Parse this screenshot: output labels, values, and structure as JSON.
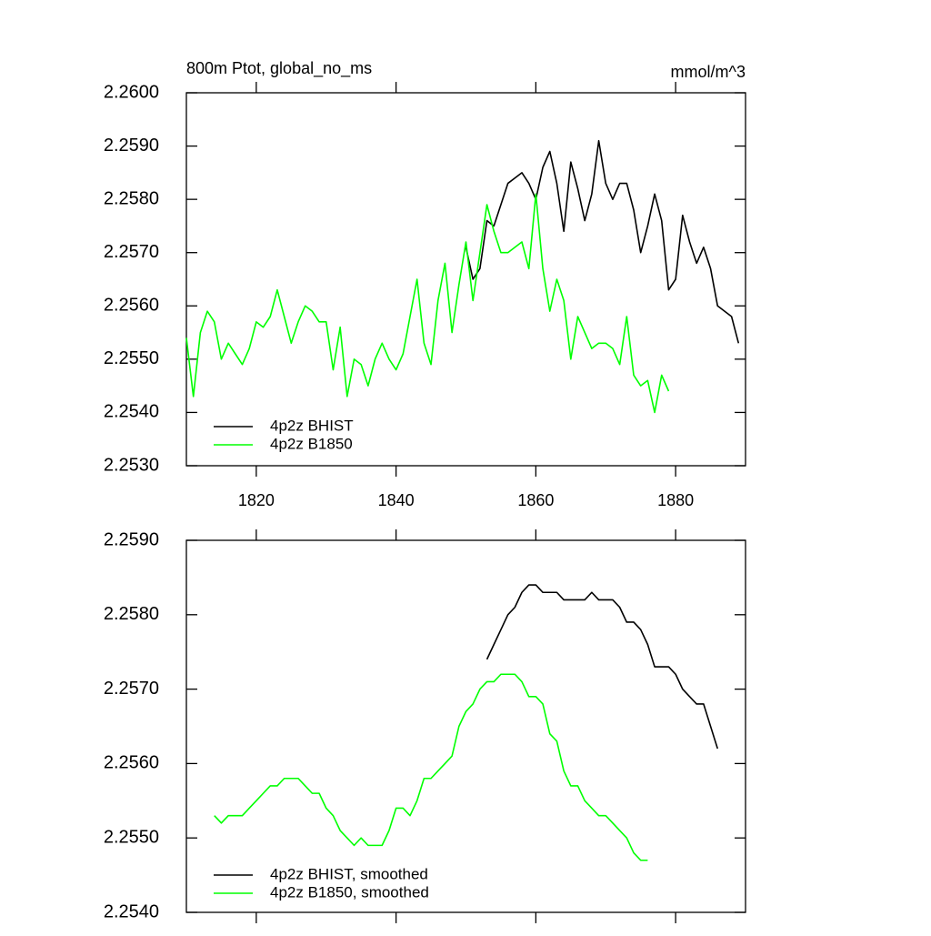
{
  "chart_data": [
    {
      "type": "line",
      "title": "800m Ptot, global_no_ms",
      "units": "mmol/m^3",
      "x": [
        1810,
        1811,
        1812,
        1813,
        1814,
        1815,
        1816,
        1817,
        1818,
        1819,
        1820,
        1821,
        1822,
        1823,
        1824,
        1825,
        1826,
        1827,
        1828,
        1829,
        1830,
        1831,
        1832,
        1833,
        1834,
        1835,
        1836,
        1837,
        1838,
        1839,
        1840,
        1841,
        1842,
        1843,
        1844,
        1845,
        1846,
        1847,
        1848,
        1849,
        1850,
        1851,
        1852,
        1853,
        1854,
        1855,
        1856,
        1857,
        1858,
        1859,
        1860,
        1861,
        1862,
        1863,
        1864,
        1865,
        1866,
        1867,
        1868,
        1869,
        1870,
        1871,
        1872,
        1873,
        1874,
        1875,
        1876,
        1877,
        1878,
        1879,
        1880,
        1881,
        1882,
        1883,
        1884,
        1885,
        1886,
        1887,
        1888,
        1889
      ],
      "series": [
        {
          "name": "4p2z BHIST",
          "color": "#000000",
          "values": [
            null,
            null,
            null,
            null,
            null,
            null,
            null,
            null,
            null,
            null,
            null,
            null,
            null,
            null,
            null,
            null,
            null,
            null,
            null,
            null,
            null,
            null,
            null,
            null,
            null,
            null,
            null,
            null,
            null,
            null,
            null,
            null,
            null,
            null,
            null,
            null,
            null,
            null,
            null,
            null,
            2.2571,
            2.2565,
            2.2567,
            2.2576,
            2.2575,
            2.2579,
            2.2583,
            2.2584,
            2.2585,
            2.2583,
            2.258,
            2.2586,
            2.2589,
            2.2583,
            2.2574,
            2.2587,
            2.2582,
            2.2576,
            2.2581,
            2.2591,
            2.2583,
            2.258,
            2.2583,
            2.2583,
            2.2578,
            2.257,
            2.2575,
            2.2581,
            2.2576,
            2.2563,
            2.2565,
            2.2577,
            2.2572,
            2.2568,
            2.2571,
            2.2567,
            2.256,
            2.2559,
            2.2558,
            2.2553
          ]
        },
        {
          "name": "4p2z B1850",
          "color": "#00ff00",
          "values": [
            2.2554,
            2.2543,
            2.2555,
            2.2559,
            2.2557,
            2.255,
            2.2553,
            2.2551,
            2.2549,
            2.2552,
            2.2557,
            2.2556,
            2.2558,
            2.2563,
            2.2558,
            2.2553,
            2.2557,
            2.256,
            2.2559,
            2.2557,
            2.2557,
            2.2548,
            2.2556,
            2.2543,
            2.255,
            2.2549,
            2.2545,
            2.255,
            2.2553,
            2.255,
            2.2548,
            2.2551,
            2.2558,
            2.2565,
            2.2553,
            2.2549,
            2.2561,
            2.2568,
            2.2555,
            2.2564,
            2.2572,
            2.2561,
            2.257,
            2.2579,
            2.2574,
            2.257,
            2.257,
            2.2571,
            2.2572,
            2.2567,
            2.2581,
            2.2567,
            2.2559,
            2.2565,
            2.2561,
            2.255,
            2.2558,
            2.2555,
            2.2552,
            2.2553,
            2.2553,
            2.2552,
            2.2549,
            2.2558,
            2.2547,
            2.2545,
            2.2546,
            2.254,
            2.2547,
            2.2544,
            null,
            null,
            null,
            null,
            null,
            null,
            null,
            null,
            null,
            null
          ]
        }
      ],
      "xlim": [
        1810,
        1890
      ],
      "xticks": [
        1820,
        1840,
        1860,
        1880
      ],
      "ylim": [
        2.253,
        2.26
      ],
      "yticks": [
        {
          "value": 2.253,
          "label": "2.2530"
        },
        {
          "value": 2.254,
          "label": "2.2540"
        },
        {
          "value": 2.255,
          "label": "2.2550"
        },
        {
          "value": 2.256,
          "label": "2.2560"
        },
        {
          "value": 2.257,
          "label": "2.2570"
        },
        {
          "value": 2.258,
          "label": "2.2580"
        },
        {
          "value": 2.259,
          "label": "2.2590"
        },
        {
          "value": 2.26,
          "label": "2.2600"
        }
      ],
      "legend": "lower left"
    },
    {
      "type": "line",
      "x": [
        1814,
        1815,
        1816,
        1817,
        1818,
        1819,
        1820,
        1821,
        1822,
        1823,
        1824,
        1825,
        1826,
        1827,
        1828,
        1829,
        1830,
        1831,
        1832,
        1833,
        1834,
        1835,
        1836,
        1837,
        1838,
        1839,
        1840,
        1841,
        1842,
        1843,
        1844,
        1845,
        1846,
        1847,
        1848,
        1849,
        1850,
        1851,
        1852,
        1853,
        1854,
        1855,
        1856,
        1857,
        1858,
        1859,
        1860,
        1861,
        1862,
        1863,
        1864,
        1865,
        1866,
        1867,
        1868,
        1869,
        1870,
        1871,
        1872,
        1873,
        1874,
        1875,
        1876,
        1877,
        1878,
        1879,
        1880,
        1881,
        1882,
        1883,
        1884,
        1885,
        1886
      ],
      "series": [
        {
          "name": "4p2z BHIST, smoothed",
          "color": "#000000",
          "values": [
            null,
            null,
            null,
            null,
            null,
            null,
            null,
            null,
            null,
            null,
            null,
            null,
            null,
            null,
            null,
            null,
            null,
            null,
            null,
            null,
            null,
            null,
            null,
            null,
            null,
            null,
            null,
            null,
            null,
            null,
            null,
            null,
            null,
            null,
            null,
            null,
            null,
            null,
            null,
            2.2574,
            2.2576,
            2.2578,
            2.258,
            2.2581,
            2.2583,
            2.2584,
            2.2584,
            2.2583,
            2.2583,
            2.2583,
            2.2582,
            2.2582,
            2.2582,
            2.2582,
            2.2583,
            2.2582,
            2.2582,
            2.2582,
            2.2581,
            2.2579,
            2.2579,
            2.2578,
            2.2576,
            2.2573,
            2.2573,
            2.2573,
            2.2572,
            2.257,
            2.2569,
            2.2568,
            2.2568,
            2.2565,
            2.2562
          ]
        },
        {
          "name": "4p2z B1850, smoothed",
          "color": "#00ff00",
          "values": [
            2.2553,
            2.2552,
            2.2553,
            2.2553,
            2.2553,
            2.2554,
            2.2555,
            2.2556,
            2.2557,
            2.2557,
            2.2558,
            2.2558,
            2.2558,
            2.2557,
            2.2556,
            2.2556,
            2.2554,
            2.2553,
            2.2551,
            2.255,
            2.2549,
            2.255,
            2.2549,
            2.2549,
            2.2549,
            2.2551,
            2.2554,
            2.2554,
            2.2553,
            2.2555,
            2.2558,
            2.2558,
            2.2559,
            2.256,
            2.2561,
            2.2565,
            2.2567,
            2.2568,
            2.257,
            2.2571,
            2.2571,
            2.2572,
            2.2572,
            2.2572,
            2.2571,
            2.2569,
            2.2569,
            2.2568,
            2.2564,
            2.2563,
            2.2559,
            2.2557,
            2.2557,
            2.2555,
            2.2554,
            2.2553,
            2.2553,
            2.2552,
            2.2551,
            2.255,
            2.2548,
            2.2547,
            2.2547,
            null,
            null,
            null,
            null,
            null,
            null,
            null,
            null,
            null,
            null
          ]
        }
      ],
      "xlim": [
        1810,
        1890
      ],
      "xticks": [
        1820,
        1840,
        1860,
        1880
      ],
      "ylim": [
        2.254,
        2.259
      ],
      "yticks": [
        {
          "value": 2.254,
          "label": "2.2540"
        },
        {
          "value": 2.255,
          "label": "2.2550"
        },
        {
          "value": 2.256,
          "label": "2.2560"
        },
        {
          "value": 2.257,
          "label": "2.2570"
        },
        {
          "value": 2.258,
          "label": "2.2580"
        },
        {
          "value": 2.259,
          "label": "2.2590"
        }
      ],
      "legend": "lower left"
    }
  ]
}
